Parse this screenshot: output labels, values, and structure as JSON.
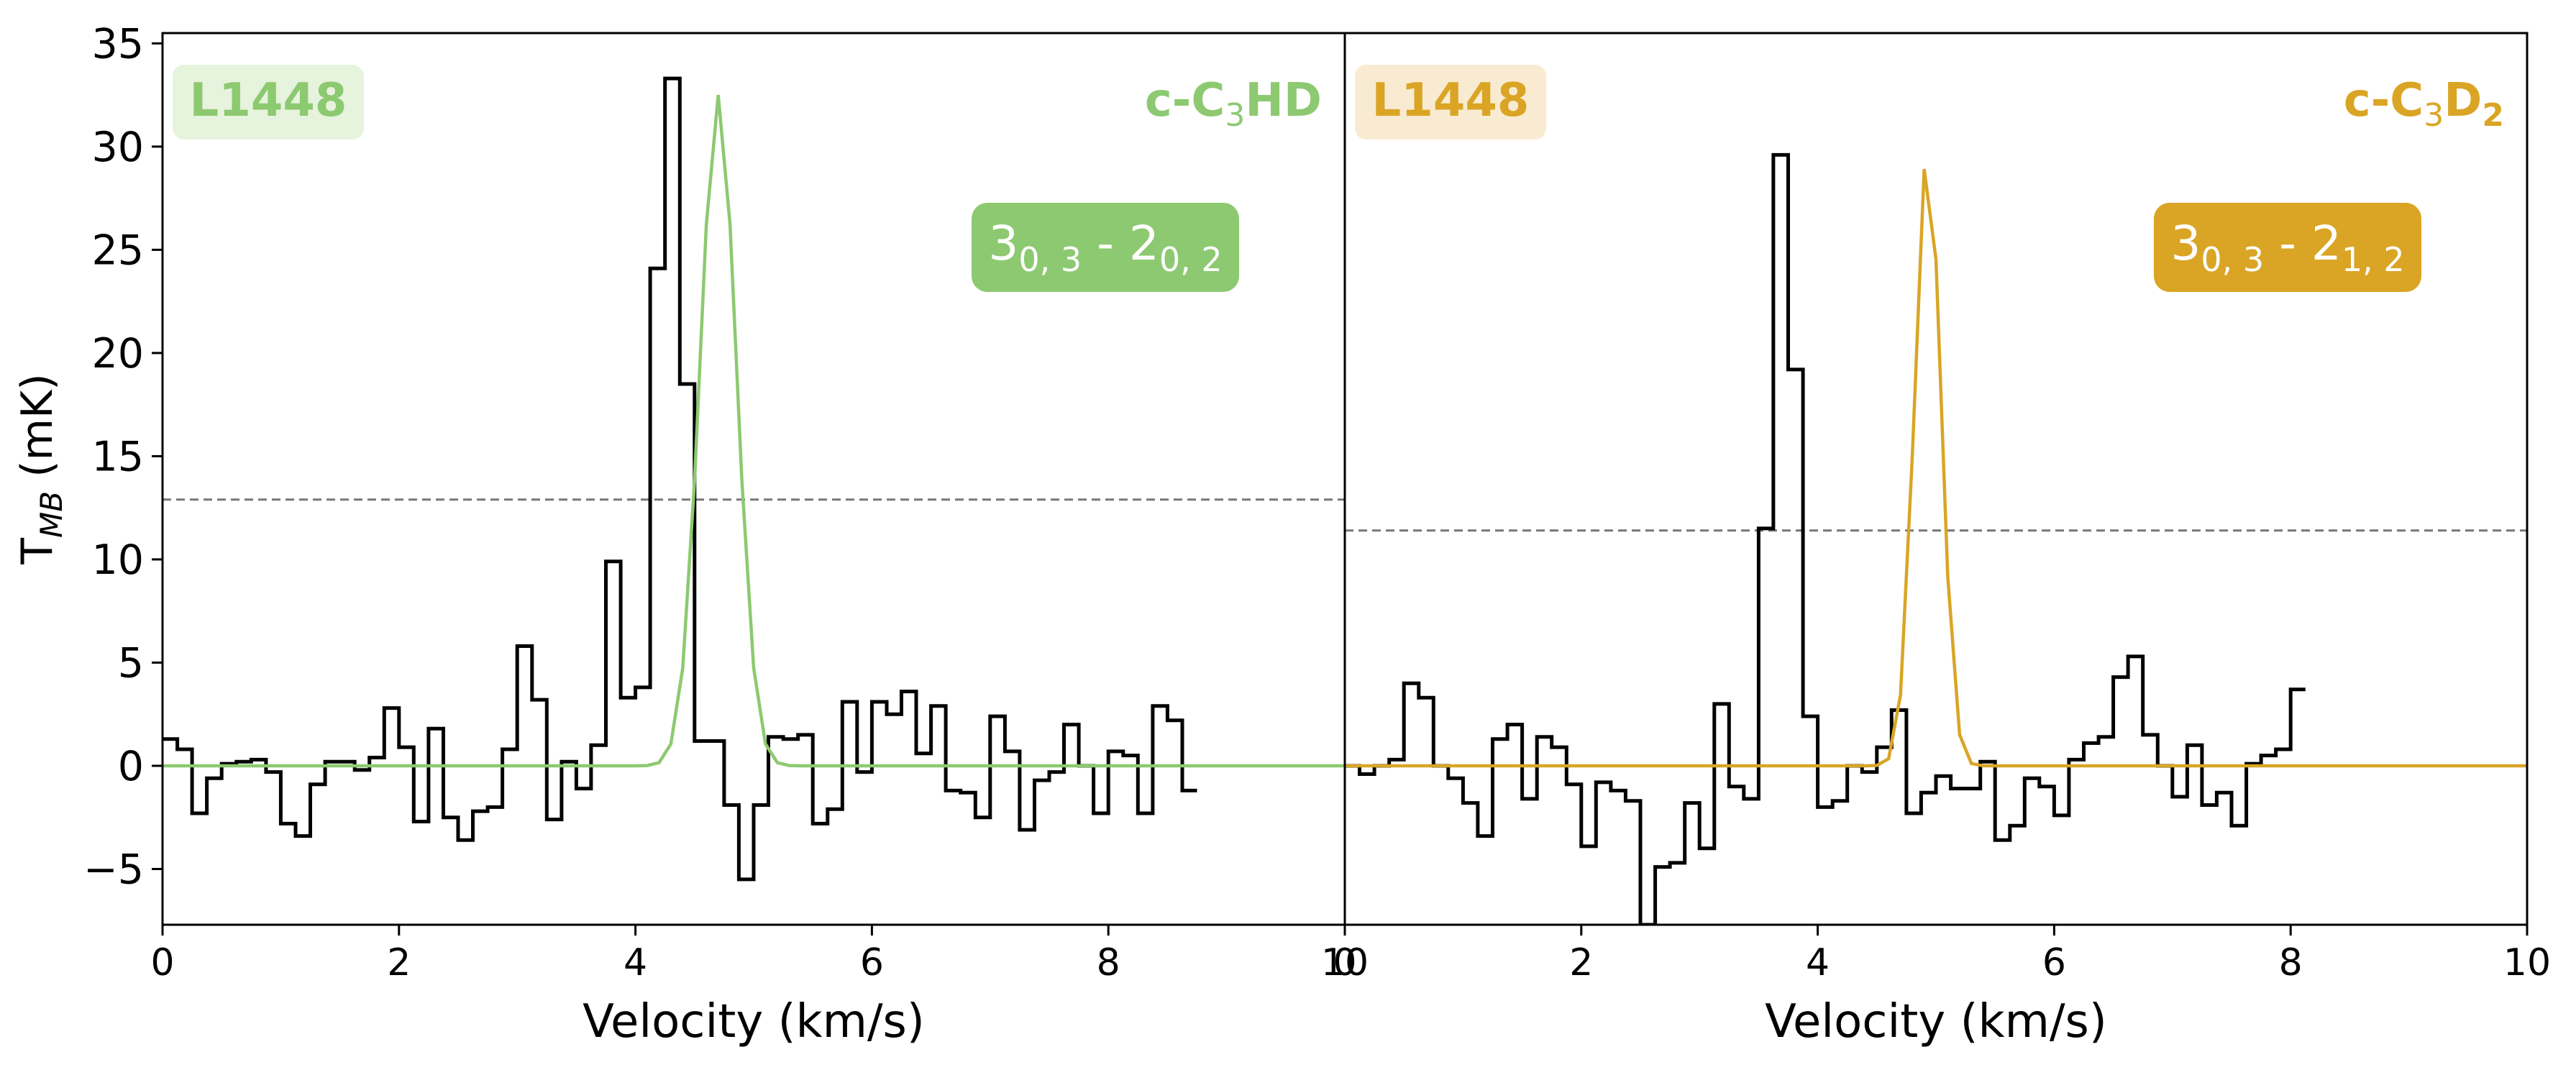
{
  "ylabel_main": "T",
  "ylabel_sub": "MB",
  "ylabel_unit": " (mK)",
  "xlabel": "Velocity (km/s)",
  "colors": {
    "axis": "#000000",
    "spectrum": "#000000",
    "rms": "#777777"
  },
  "chart_data": [
    {
      "type": "line",
      "source_label": "L1448",
      "species": {
        "prefix": "c-C",
        "sub": "3",
        "suffix": "HD",
        "sub2": ""
      },
      "transition": {
        "upper": "3",
        "upper_sub": "0, 3",
        "sep": " - ",
        "lower": "2",
        "lower_sub": "0, 2"
      },
      "color": "#8dc970",
      "label_bg": "#e6f3dd",
      "xlim": [
        0,
        10
      ],
      "ylim": [
        -7.7,
        35.5
      ],
      "xticks": [
        0,
        2,
        4,
        6,
        8,
        10
      ],
      "yticks": [
        -5,
        0,
        5,
        10,
        15,
        20,
        25,
        30,
        35
      ],
      "rms_level": 12.9,
      "spectrum_step": 0.125,
      "spectrum": [
        1.3,
        0.8,
        -2.3,
        -0.6,
        0.1,
        0.2,
        0.3,
        -0.3,
        -2.8,
        -3.4,
        -0.9,
        0.2,
        0.2,
        -0.2,
        0.4,
        2.8,
        0.9,
        -2.7,
        1.8,
        -2.5,
        -3.6,
        -2.2,
        -2.0,
        0.8,
        5.8,
        3.2,
        -2.6,
        0.2,
        -1.1,
        1.0,
        9.9,
        3.3,
        3.8,
        24.1,
        33.3,
        18.5,
        1.2,
        1.2,
        -1.9,
        -5.5,
        -1.9,
        1.4,
        1.3,
        1.5,
        -2.8,
        -2.1,
        3.1,
        -0.3,
        3.1,
        2.5,
        3.6,
        0.6,
        2.9,
        -1.2,
        -1.3,
        -2.5,
        2.4,
        0.7,
        -3.1,
        -0.7,
        -0.3,
        2.0,
        0.0,
        -2.3,
        0.7,
        0.5,
        -2.3,
        2.9,
        2.2,
        -1.2
      ],
      "fit": {
        "amp": 32.5,
        "center": 4.7,
        "fwhm": 0.36
      }
    },
    {
      "type": "line",
      "source_label": "L1448",
      "species": {
        "prefix": "c-C",
        "sub": "3",
        "suffix": "D",
        "sub2": "2"
      },
      "transition": {
        "upper": "3",
        "upper_sub": "0, 3",
        "sep": " - ",
        "lower": "2",
        "lower_sub": "1, 2"
      },
      "color": "#daa525",
      "label_bg": "#f9ebd2",
      "xlim": [
        0,
        10
      ],
      "ylim": [
        -7.7,
        35.5
      ],
      "xticks": [
        0,
        2,
        4,
        6,
        8,
        10
      ],
      "yticks": [
        -5,
        0,
        5,
        10,
        15,
        20,
        25,
        30,
        35
      ],
      "rms_level": 11.4,
      "spectrum_step": 0.125,
      "spectrum": [
        0.0,
        -0.4,
        0.0,
        0.3,
        4.0,
        3.3,
        0.0,
        -0.6,
        -1.8,
        -3.4,
        1.3,
        2.0,
        -1.6,
        1.4,
        0.9,
        -0.9,
        -3.9,
        -0.8,
        -1.2,
        -1.7,
        -7.7,
        -4.9,
        -4.7,
        -1.8,
        -4.0,
        3.0,
        -1.0,
        -1.6,
        11.5,
        29.6,
        19.2,
        2.4,
        -2.0,
        -1.7,
        0.0,
        -0.3,
        0.9,
        2.7,
        -2.3,
        -1.3,
        -0.5,
        -1.1,
        -1.1,
        0.2,
        -3.6,
        -2.9,
        -0.6,
        -1.0,
        -2.4,
        0.3,
        1.1,
        1.4,
        4.3,
        5.3,
        1.5,
        0.0,
        -1.5,
        1.0,
        -1.9,
        -1.3,
        -2.9,
        0.1,
        0.5,
        0.8,
        3.7
      ],
      "fit": {
        "amp": 30.0,
        "center": 4.93,
        "fwhm": 0.26
      }
    }
  ]
}
